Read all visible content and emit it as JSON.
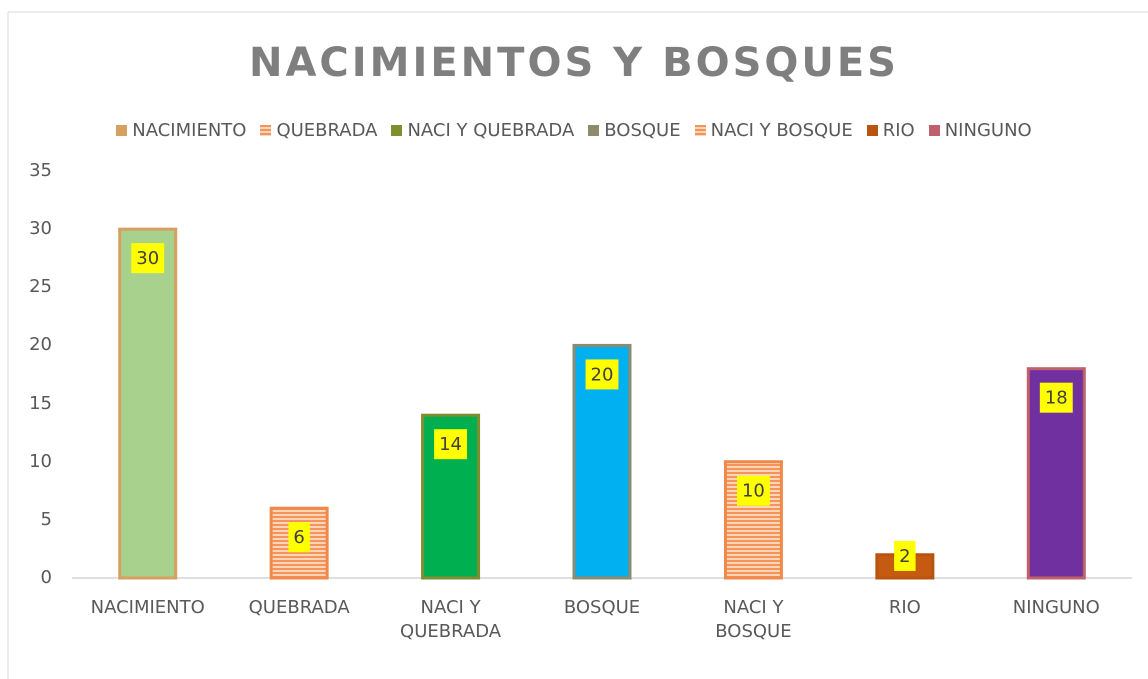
{
  "chart_data": {
    "type": "bar",
    "title": "NACIMIENTOS Y BOSQUES",
    "categories": [
      "NACIMIENTO",
      "QUEBRADA",
      "NACI Y QUEBRADA",
      "BOSQUE",
      "NACI Y BOSQUE",
      "RIO",
      "NINGUNO"
    ],
    "values": [
      30,
      6,
      14,
      20,
      10,
      2,
      18
    ],
    "colors": [
      "#a9d18e",
      "#f4b183",
      "#00b050",
      "#00b0f0",
      "#f4b183",
      "#c55a11",
      "#7030a0"
    ],
    "edge_colors": [
      "#d6a060",
      "#f08a4b",
      "#7f8f2f",
      "#8c8c6c",
      "#f08a4b",
      "#b85410",
      "#c0606a"
    ],
    "hatched": [
      false,
      true,
      false,
      false,
      true,
      false,
      false
    ],
    "ylim": [
      0,
      35
    ],
    "yticks": [
      0,
      5,
      10,
      15,
      20,
      25,
      30,
      35
    ],
    "grid": false
  }
}
